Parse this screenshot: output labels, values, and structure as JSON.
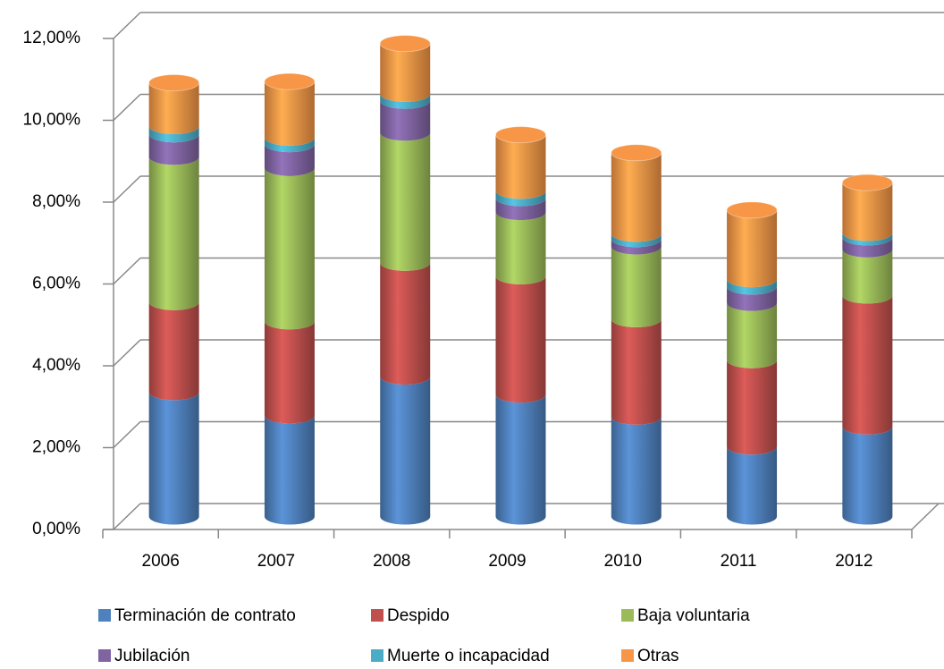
{
  "chart_data": {
    "type": "stacked_cylinder",
    "categories": [
      "2006",
      "2007",
      "2008",
      "2009",
      "2010",
      "2011",
      "2012"
    ],
    "series": [
      {
        "name": "Terminación de contrato",
        "color": "#4f81bd",
        "values": [
          3.04,
          2.47,
          3.42,
          2.98,
          2.44,
          1.71,
          2.2
        ]
      },
      {
        "name": "Despido",
        "color": "#c0504d",
        "values": [
          2.2,
          2.3,
          2.78,
          2.89,
          2.38,
          2.11,
          3.2
        ]
      },
      {
        "name": "Baja voluntaria",
        "color": "#9bbb59",
        "values": [
          3.55,
          3.75,
          3.18,
          1.57,
          1.78,
          1.4,
          1.13
        ]
      },
      {
        "name": "Jubilación",
        "color": "#8064a2",
        "values": [
          0.55,
          0.58,
          0.78,
          0.34,
          0.18,
          0.4,
          0.29
        ]
      },
      {
        "name": "Muerte o incapacidad",
        "color": "#4bacc6",
        "values": [
          0.2,
          0.16,
          0.17,
          0.18,
          0.13,
          0.18,
          0.11
        ]
      },
      {
        "name": "Otras",
        "color": "#f79646",
        "values": [
          1.06,
          1.37,
          1.23,
          1.37,
          1.98,
          1.69,
          1.23
        ]
      }
    ],
    "ylim": [
      0,
      12
    ],
    "yticks": [
      {
        "value": 0,
        "label": "0,00%"
      },
      {
        "value": 2,
        "label": "2,00%"
      },
      {
        "value": 4,
        "label": "4,00%"
      },
      {
        "value": 6,
        "label": "6,00%"
      },
      {
        "value": 8,
        "label": "8,00%"
      },
      {
        "value": 10,
        "label": "10,00%"
      },
      {
        "value": 12,
        "label": "12,00%"
      }
    ],
    "grid": true,
    "legend": "bottom"
  }
}
